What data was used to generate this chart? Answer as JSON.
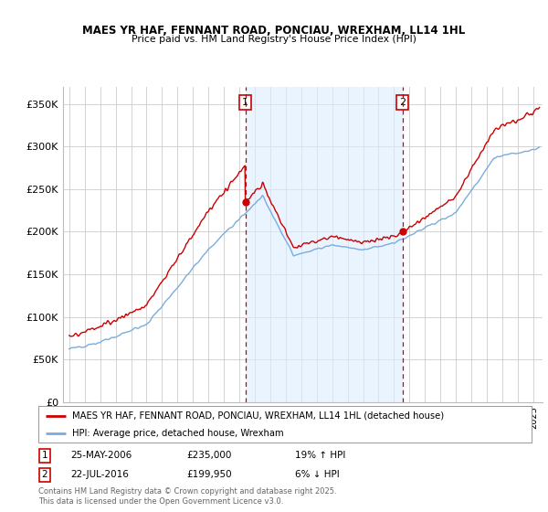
{
  "title": "MAES YR HAF, FENNANT ROAD, PONCIAU, WREXHAM, LL14 1HL",
  "subtitle": "Price paid vs. HM Land Registry's House Price Index (HPI)",
  "ylim": [
    0,
    370000
  ],
  "yticks": [
    0,
    50000,
    100000,
    150000,
    200000,
    250000,
    300000,
    350000
  ],
  "ytick_labels": [
    "£0",
    "£50K",
    "£100K",
    "£150K",
    "£200K",
    "£250K",
    "£300K",
    "£350K"
  ],
  "sale1_date_num": 2006.38,
  "sale1_label": "1",
  "sale1_price": 235000,
  "sale2_date_num": 2016.55,
  "sale2_label": "2",
  "sale2_price": 199950,
  "line1_color": "#cc0000",
  "line2_color": "#7aaddc",
  "vline_color": "#cc0000",
  "shade_color": "#ddeeff",
  "dot_color": "#cc0000",
  "legend1_label": "MAES YR HAF, FENNANT ROAD, PONCIAU, WREXHAM, LL14 1HL (detached house)",
  "legend2_label": "HPI: Average price, detached house, Wrexham",
  "sale1_date_str": "25-MAY-2006",
  "sale1_price_str": "£235,000",
  "sale1_hpi_str": "19% ↑ HPI",
  "sale2_date_str": "22-JUL-2016",
  "sale2_price_str": "£199,950",
  "sale2_hpi_str": "6% ↓ HPI",
  "footnote": "Contains HM Land Registry data © Crown copyright and database right 2025.\nThis data is licensed under the Open Government Licence v3.0.",
  "background_color": "#ffffff",
  "grid_color": "#cccccc"
}
